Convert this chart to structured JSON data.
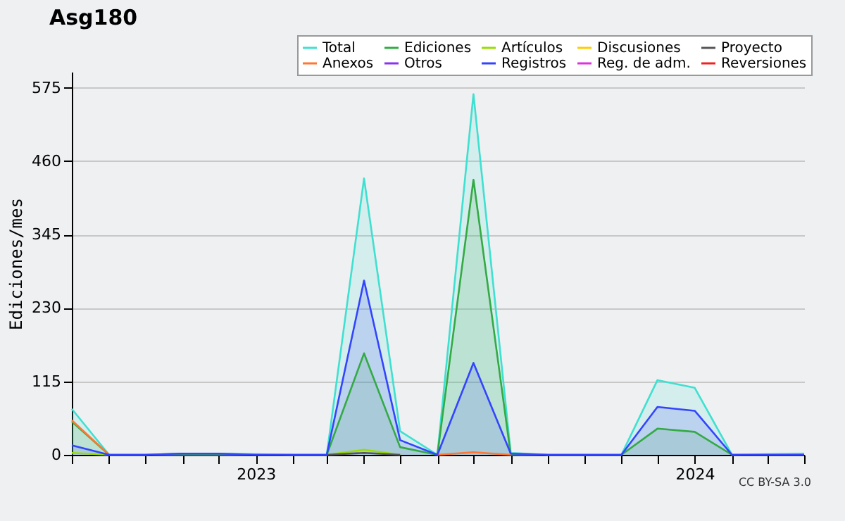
{
  "chart_data": {
    "type": "area",
    "title": "Asg180",
    "ylabel": "Ediciones/mes",
    "x": [
      "2022-08",
      "2022-09",
      "2022-10",
      "2022-11",
      "2022-12",
      "2023-01",
      "2023-02",
      "2023-03",
      "2023-04",
      "2023-05",
      "2023-06",
      "2023-07",
      "2023-08",
      "2023-09",
      "2023-10",
      "2023-11",
      "2023-12",
      "2024-01",
      "2024-02",
      "2024-03",
      "2024-04"
    ],
    "xlim": [
      "2022-08",
      "2024-04"
    ],
    "xticks": [
      {
        "value": "2022-08",
        "label": null
      },
      {
        "value": "2022-09",
        "label": null
      },
      {
        "value": "2022-10",
        "label": null
      },
      {
        "value": "2022-11",
        "label": null
      },
      {
        "value": "2022-12",
        "label": null
      },
      {
        "value": "2023-01",
        "label": "2023"
      },
      {
        "value": "2023-02",
        "label": null
      },
      {
        "value": "2023-03",
        "label": null
      },
      {
        "value": "2023-04",
        "label": null
      },
      {
        "value": "2023-05",
        "label": null
      },
      {
        "value": "2023-06",
        "label": null
      },
      {
        "value": "2023-07",
        "label": null
      },
      {
        "value": "2023-08",
        "label": null
      },
      {
        "value": "2023-09",
        "label": null
      },
      {
        "value": "2023-10",
        "label": null
      },
      {
        "value": "2023-11",
        "label": null
      },
      {
        "value": "2023-12",
        "label": null
      },
      {
        "value": "2024-01",
        "label": "2024"
      },
      {
        "value": "2024-02",
        "label": null
      },
      {
        "value": "2024-03",
        "label": null
      },
      {
        "value": "2024-04",
        "label": null
      }
    ],
    "ylim": [
      0,
      600
    ],
    "yticks": [
      0,
      115,
      230,
      345,
      460,
      575
    ],
    "grid": "y",
    "legend": "top right",
    "series": [
      {
        "name": "Total",
        "color": "#40e0d0",
        "values": [
          72,
          0,
          0,
          2,
          2,
          1,
          0,
          0,
          433,
          37,
          0,
          565,
          3,
          0,
          0,
          0,
          117,
          105,
          0,
          1,
          2
        ]
      },
      {
        "name": "Ediciones",
        "color": "#33aa44",
        "values": [
          52,
          0,
          0,
          0,
          0,
          0,
          0,
          0,
          159,
          12,
          0,
          431,
          0,
          0,
          0,
          0,
          41,
          36,
          0,
          0,
          0
        ]
      },
      {
        "name": "Artículos",
        "type": "line",
        "color": "#99dd00",
        "values": [
          3,
          0,
          null,
          null,
          null,
          null,
          null,
          0,
          8,
          0,
          null,
          null,
          null,
          null,
          null,
          null,
          null,
          null,
          null,
          null,
          null
        ]
      },
      {
        "name": "Discusiones",
        "type": "line",
        "color": "#ffcc00",
        "values": [
          null,
          null,
          null,
          null,
          null,
          null,
          null,
          null,
          null,
          null,
          null,
          null,
          null,
          null,
          null,
          null,
          null,
          null,
          null,
          null,
          null
        ]
      },
      {
        "name": "Proyecto",
        "type": "line",
        "color": "#555555",
        "values": [
          null,
          null,
          null,
          null,
          null,
          null,
          null,
          0,
          3,
          0,
          null,
          null,
          null,
          null,
          null,
          null,
          null,
          null,
          null,
          null,
          null
        ]
      },
      {
        "name": "Anexos",
        "type": "line",
        "color": "#ff7733",
        "values": [
          54,
          0,
          null,
          null,
          null,
          null,
          null,
          null,
          null,
          null,
          0,
          4,
          0,
          null,
          null,
          null,
          null,
          null,
          null,
          null,
          null
        ]
      },
      {
        "name": "Otros",
        "type": "line",
        "color": "#8833ee",
        "values": [
          null,
          null,
          null,
          null,
          null,
          null,
          null,
          null,
          null,
          null,
          null,
          null,
          null,
          null,
          null,
          null,
          null,
          null,
          null,
          null,
          null
        ]
      },
      {
        "name": "Registros",
        "color": "#3344ff",
        "values": [
          15,
          0,
          0,
          2,
          2,
          0,
          0,
          0,
          273,
          23,
          0,
          144,
          2,
          0,
          0,
          0,
          75,
          69,
          0,
          0,
          0
        ]
      },
      {
        "name": "Reg. de adm.",
        "type": "line",
        "color": "#dd33dd",
        "values": [
          null,
          null,
          null,
          null,
          null,
          null,
          null,
          null,
          null,
          null,
          null,
          null,
          null,
          null,
          null,
          null,
          null,
          null,
          null,
          null,
          null
        ]
      },
      {
        "name": "Reversiones",
        "type": "line",
        "color": "#ee2222",
        "values": [
          null,
          null,
          null,
          null,
          null,
          null,
          null,
          null,
          null,
          null,
          null,
          null,
          null,
          null,
          null,
          null,
          null,
          null,
          null,
          null,
          null
        ]
      }
    ],
    "annotations": [
      "CC BY-SA 3.0"
    ]
  }
}
